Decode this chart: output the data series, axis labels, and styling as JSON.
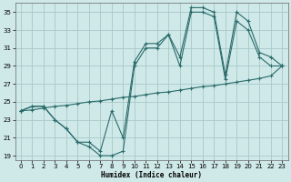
{
  "xlabel": "Humidex (Indice chaleur)",
  "xlim": [
    -0.5,
    23.5
  ],
  "ylim": [
    18.5,
    36.0
  ],
  "xticks": [
    0,
    1,
    2,
    3,
    4,
    5,
    6,
    7,
    8,
    9,
    10,
    11,
    12,
    13,
    14,
    15,
    16,
    17,
    18,
    19,
    20,
    21,
    22,
    23
  ],
  "yticks": [
    19,
    21,
    23,
    25,
    27,
    29,
    31,
    33,
    35
  ],
  "background_color": "#cfe8e8",
  "grid_color": "#a8c8c8",
  "line_color": "#2a6b6b",
  "line1_x": [
    0,
    1,
    2,
    3,
    4,
    5,
    6,
    7,
    8,
    9,
    10,
    11,
    12,
    13,
    14,
    15,
    16,
    17,
    18,
    19,
    20,
    21,
    22,
    23
  ],
  "line1_y": [
    24.0,
    24.5,
    24.5,
    23.0,
    22.0,
    20.5,
    20.0,
    19.0,
    19.0,
    19.5,
    29.0,
    31.0,
    31.0,
    32.5,
    29.0,
    35.0,
    35.0,
    34.5,
    27.5,
    34.0,
    33.0,
    30.0,
    29.0,
    29.0
  ],
  "line2_x": [
    0,
    1,
    2,
    3,
    4,
    5,
    6,
    7,
    8,
    9,
    10,
    11,
    12,
    13,
    14,
    15,
    16,
    17,
    18,
    19,
    20,
    21,
    22,
    23
  ],
  "line2_y": [
    24.0,
    24.5,
    24.5,
    23.0,
    22.0,
    20.5,
    20.5,
    19.5,
    24.0,
    21.0,
    29.5,
    31.5,
    31.5,
    32.5,
    30.0,
    35.5,
    35.5,
    35.0,
    28.0,
    35.0,
    34.0,
    30.5,
    30.0,
    29.0
  ],
  "line3_x": [
    0,
    1,
    2,
    3,
    4,
    5,
    6,
    7,
    8,
    9,
    10,
    11,
    12,
    13,
    14,
    15,
    16,
    17,
    18,
    19,
    20,
    21,
    22,
    23
  ],
  "line3_y": [
    24.0,
    24.1,
    24.3,
    24.5,
    24.6,
    24.8,
    25.0,
    25.1,
    25.3,
    25.5,
    25.6,
    25.8,
    26.0,
    26.1,
    26.3,
    26.5,
    26.7,
    26.8,
    27.0,
    27.2,
    27.4,
    27.6,
    27.9,
    29.0
  ]
}
